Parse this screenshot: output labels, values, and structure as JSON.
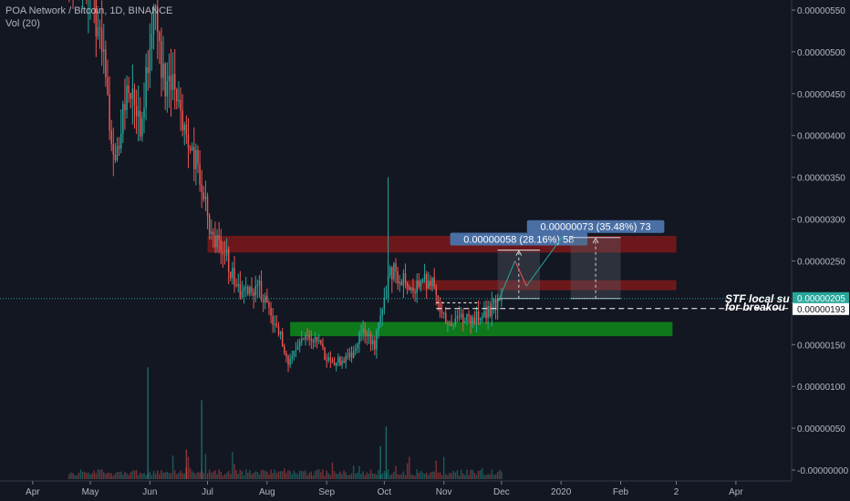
{
  "header": {
    "symbol_line": "POA Network / Bitcoin, 1D, BINANCE",
    "volume_line": "Vol (20)"
  },
  "colors": {
    "background": "#131722",
    "up": "#26a69a",
    "down": "#ef5350",
    "axis_text": "#b2b5be",
    "resistance_zone": "#8b1a1a",
    "support_zone": "#0f7d1a",
    "label_bg": "#4a6fa5",
    "price_line": "#2b9a9a"
  },
  "chart_data": {
    "type": "candlestick",
    "title": "POA Network / Bitcoin, 1D, BINANCE",
    "y_ticks": [
      "0.00000550",
      "0.00000500",
      "0.00000450",
      "0.00000400",
      "0.00000350",
      "0.00000300",
      "0.00000250",
      "0.00000200",
      "0.00000150",
      "0.00000100",
      "0.00000050",
      "-0.00000000"
    ],
    "y_tick_values": [
      5.5e-06,
      5e-06,
      4.5e-06,
      4e-06,
      3.5e-06,
      3e-06,
      2.5e-06,
      2e-06,
      1.5e-06,
      1e-06,
      5e-07,
      0
    ],
    "x_ticks": [
      "Apr",
      "May",
      "Jun",
      "Jul",
      "Aug",
      "Sep",
      "Oct",
      "Nov",
      "Dec",
      "2020",
      "Feb",
      "2",
      "Apr"
    ],
    "x_tick_dates": [
      "2019-04-01",
      "2019-05-01",
      "2019-06-01",
      "2019-07-01",
      "2019-08-01",
      "2019-09-01",
      "2019-10-01",
      "2019-11-01",
      "2019-12-01",
      "2020-01-01",
      "2020-02-01",
      "2020-03-01",
      "2020-04-01"
    ],
    "price_path": [
      [
        "2019-04-20",
        6.2e-06
      ],
      [
        "2019-05-01",
        5.8e-06
      ],
      [
        "2019-05-08",
        4.9e-06
      ],
      [
        "2019-05-14",
        3.6e-06
      ],
      [
        "2019-05-20",
        4.6e-06
      ],
      [
        "2019-05-28",
        4.1e-06
      ],
      [
        "2019-06-03",
        5.7e-06
      ],
      [
        "2019-06-08",
        4.7e-06
      ],
      [
        "2019-06-14",
        4.5e-06
      ],
      [
        "2019-06-20",
        4e-06
      ],
      [
        "2019-06-26",
        3.6e-06
      ],
      [
        "2019-07-03",
        2.8e-06
      ],
      [
        "2019-07-10",
        2.6e-06
      ],
      [
        "2019-07-16",
        2.2e-06
      ],
      [
        "2019-07-20",
        2.1e-06
      ],
      [
        "2019-07-28",
        2.2e-06
      ],
      [
        "2019-08-02",
        1.9e-06
      ],
      [
        "2019-08-08",
        1.6e-06
      ],
      [
        "2019-08-12",
        1.3e-06
      ],
      [
        "2019-08-18",
        1.5e-06
      ],
      [
        "2019-08-25",
        1.6e-06
      ],
      [
        "2019-09-02",
        1.3e-06
      ],
      [
        "2019-09-08",
        1.3e-06
      ],
      [
        "2019-09-14",
        1.4e-06
      ],
      [
        "2019-09-20",
        1.7e-06
      ],
      [
        "2019-09-26",
        1.5e-06
      ],
      [
        "2019-09-30",
        1.9e-06
      ],
      [
        "2019-10-04",
        2.4e-06
      ],
      [
        "2019-10-10",
        2.3e-06
      ],
      [
        "2019-10-18",
        2.2e-06
      ],
      [
        "2019-10-25",
        2.3e-06
      ],
      [
        "2019-10-31",
        1.8e-06
      ],
      [
        "2019-11-08",
        1.8e-06
      ],
      [
        "2019-11-16",
        1.8e-06
      ],
      [
        "2019-11-24",
        1.9e-06
      ],
      [
        "2019-11-29",
        2e-06
      ],
      [
        "2019-12-01",
        2.05e-06
      ]
    ],
    "volume_ylim": [
      0,
      1.8e-06
    ],
    "ylim": [
      -1e-07,
      5.75e-06
    ],
    "xlim": [
      "2019-03-15",
      "2020-04-30"
    ],
    "grid": false,
    "zones": [
      {
        "kind": "resistance",
        "x_start": "2019-07-01",
        "x_end": "2020-03-01",
        "y_low": 2.6e-06,
        "y_high": 2.8e-06
      },
      {
        "kind": "resistance",
        "x_start": "2019-10-12",
        "x_end": "2020-03-01",
        "y_low": 2.15e-06,
        "y_high": 2.27e-06
      },
      {
        "kind": "support",
        "x_start": "2019-08-13",
        "x_end": "2020-02-28",
        "y_low": 1.6e-06,
        "y_high": 1.77e-06
      }
    ],
    "measurements": [
      {
        "label": "0.00000058 (28.16%) 58",
        "x_start": "2019-11-29",
        "x_end": "2019-12-21",
        "y_from": 2.05e-06,
        "y_to": 2.63e-06
      },
      {
        "label": "0.00000073 (35.48%) 73",
        "x_start": "2020-01-06",
        "x_end": "2020-02-01",
        "y_from": 2.05e-06,
        "y_to": 2.78e-06
      }
    ],
    "current_price": {
      "label": "0.00000205",
      "value": 2.05e-06
    },
    "breakout_level": {
      "label": "0.00000193",
      "value": 1.93e-06
    },
    "annotation_lines": [
      "STF local su",
      "for breakou"
    ]
  }
}
